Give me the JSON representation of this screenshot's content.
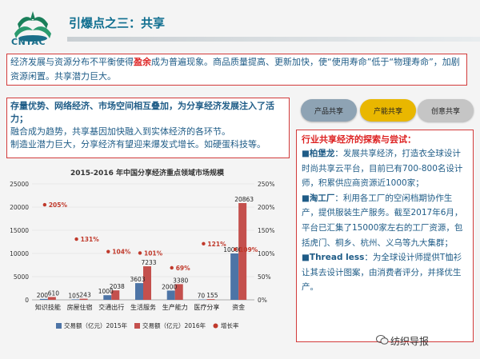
{
  "logo": {
    "text": "CNTAC"
  },
  "title": "引爆点之三：共享",
  "intro": {
    "part1": "经济发展与资源分布不平衡使得",
    "highlight": "盈余",
    "part2": "成为普遍现象。商品质量提高、更新加快，使“使用寿命”低于“物理寿命”，加剧资源闲置。共享潜力巨大。"
  },
  "box2": {
    "head": "存量优势、网络经济、市场空间相互叠加，为分享经济发展注入了活力；",
    "line1": "融合成为趋势，共享基因加快融入到实体经济的各环节。",
    "line2": "制造业潜力巨大，分享经济有望迎来爆发式增长。如硬蛋科技等。"
  },
  "pills": [
    "产品共享",
    "产能共享",
    "创意共享"
  ],
  "box3": {
    "heading": "行业共享经济的探索与尝试：",
    "items": [
      {
        "name": "柏堡龙",
        "text": "：发展共享经济，打造衣全球设计时尚共享云平台，目前已有700-800名设计师，积累供应商资源近1000家；"
      },
      {
        "name": "淘工厂",
        "text": "：利用各工厂的空闲档期协作生产，提供服装生产服务。截至2017年6月，平台已汇集了15000家左右的工厂资源，包括虎门、桐乡、杭州、义乌等九大集群；"
      },
      {
        "name": "Thread less",
        "text": "：为全球设计师提供T恤衫让其去设计图案，由消费者评分，并择优生产。"
      }
    ]
  },
  "chart_data": {
    "type": "bar",
    "title": "2015-2016 年中国分享经济重点领域市场规模",
    "categories": [
      "知识技能",
      "房屋住宿",
      "交通出行",
      "生活服务",
      "生产能力",
      "医疗分享",
      "资金"
    ],
    "series": [
      {
        "name": "交易额（亿元）2015年",
        "values": [
          200,
          105,
          1000,
          3603,
          2000,
          70,
          10000
        ],
        "labels": [
          "200",
          "105",
          "1000",
          "3603",
          "2000",
          "70",
          "10000"
        ],
        "color": "#4d74a6"
      },
      {
        "name": "交易额（亿元）2016年",
        "values": [
          610,
          243,
          2038,
          7233,
          3380,
          155,
          20863
        ],
        "labels": [
          "610",
          "243",
          "2038",
          "7233",
          "3380",
          "155",
          "20863"
        ],
        "color": "#c4504d"
      },
      {
        "name": "增长率",
        "values": [
          205,
          131,
          104,
          101,
          69,
          121,
          109
        ],
        "labels": [
          "205%",
          "131%",
          "104%",
          "101%",
          "69%",
          "121%",
          "109%"
        ],
        "color": "#c0392b"
      }
    ],
    "y_left": {
      "min": 0,
      "max": 25000,
      "ticks": [
        "0",
        "5000",
        "10000",
        "15000",
        "20000",
        "25000"
      ]
    },
    "y_right": {
      "min": 0,
      "max": 250,
      "ticks": [
        "0%",
        "50%",
        "100%",
        "150%",
        "200%",
        "250%"
      ]
    },
    "legend_position": "bottom"
  },
  "watermark": "纺织导报"
}
